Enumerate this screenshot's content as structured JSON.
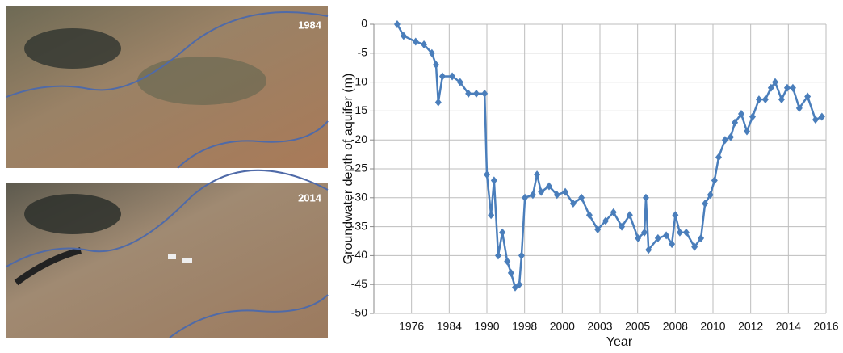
{
  "panels": [
    "1984",
    "2014"
  ],
  "chart_data": {
    "type": "line",
    "y_label": "Groundwater depth of aquifer (m)",
    "x_label": "Year",
    "categories": [
      "1976",
      "1984",
      "1990",
      "1998",
      "2000",
      "2003",
      "2005",
      "2008",
      "2010",
      "2012",
      "2014",
      "2016"
    ],
    "xlim": [
      0,
      12
    ],
    "ylim": [
      -50,
      0
    ],
    "yticks": [
      0,
      -5,
      -10,
      -15,
      -20,
      -25,
      -30,
      -35,
      -40,
      -45,
      -50
    ],
    "grid": true,
    "series": [
      {
        "color": "#4a7ebb",
        "x": [
          0.62,
          0.79,
          1.11,
          1.33,
          1.54,
          1.65,
          1.71,
          1.82,
          2.08,
          2.29,
          2.51,
          2.72,
          2.94,
          3.0,
          3.11,
          3.19,
          3.3,
          3.41,
          3.54,
          3.64,
          3.75,
          3.86,
          3.92,
          4.01,
          4.22,
          4.33,
          4.44,
          4.65,
          4.86,
          5.08,
          5.29,
          5.51,
          5.72,
          5.94,
          6.15,
          6.36,
          6.58,
          6.79,
          7.01,
          7.18,
          7.22,
          7.29,
          7.54,
          7.76,
          7.91,
          8.0,
          8.12,
          8.29,
          8.51,
          8.68,
          8.79,
          8.93,
          9.04,
          9.15,
          9.32,
          9.47,
          9.58,
          9.75,
          9.9,
          10.05,
          10.22,
          10.39,
          10.54,
          10.65,
          10.82,
          10.97,
          11.12,
          11.29,
          11.51,
          11.72,
          11.89
        ],
        "values": [
          0,
          -2,
          -3,
          -3.5,
          -5,
          -7,
          -13.5,
          -9,
          -9,
          -10,
          -12,
          -12,
          -12,
          -26,
          -33,
          -27,
          -40,
          -36,
          -41,
          -43,
          -45.5,
          -45,
          -40,
          -30,
          -29.5,
          -26,
          -29,
          -28,
          -29.5,
          -29,
          -31,
          -30,
          -33,
          -35.5,
          -34,
          -32.5,
          -35,
          -33,
          -37,
          -36,
          -30,
          -39,
          -37,
          -36.5,
          -38,
          -33,
          -36,
          -36,
          -38.5,
          -37,
          -31,
          -29.5,
          -27,
          -23,
          -20,
          -19.5,
          -17,
          -15.5,
          -18.5,
          -16,
          -13,
          -13,
          -11,
          -10,
          -13,
          -11,
          -11,
          -14.5,
          -12.5,
          -16.5,
          -16
        ]
      }
    ]
  }
}
